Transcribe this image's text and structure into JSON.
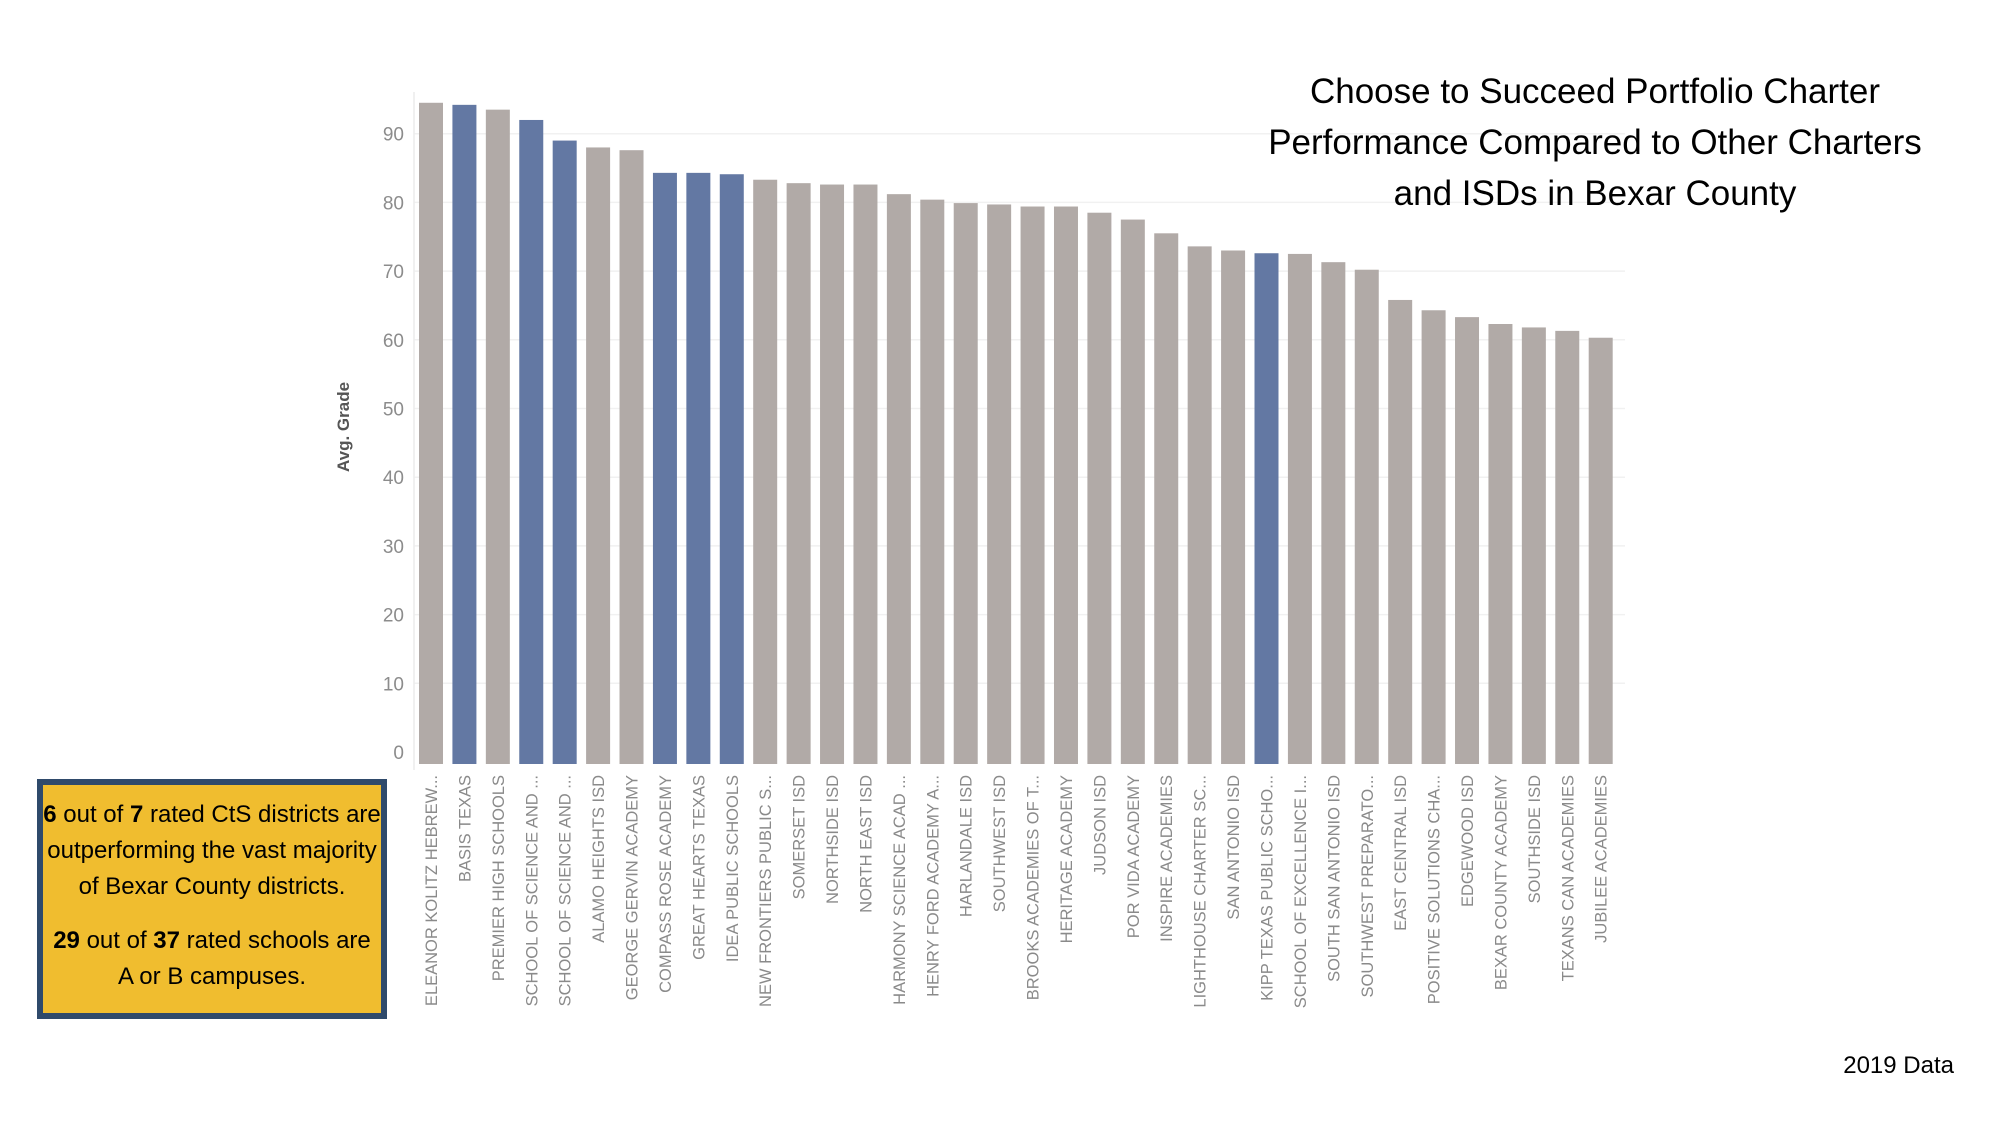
{
  "title_lines": [
    "Choose to Succeed Portfolio Charter",
    "Performance Compared to Other Charters",
    "and ISDs in Bexar County"
  ],
  "callout": {
    "p1": {
      "n1": "6",
      "t1": " out of ",
      "n2": "7",
      "t2": " rated CtS districts are outperforming the vast majority of Bexar County districts."
    },
    "p2": {
      "n1": "29",
      "t1": " out of ",
      "n2": "37",
      "t2": " rated schools are A or B campuses."
    }
  },
  "footnote": "2019 Data",
  "colors": {
    "cts_bar": "#6378a3",
    "other_bar": "#b1aaa7",
    "callout_bg": "#f0bd2f",
    "callout_border": "#2f4a6b"
  },
  "chart_data": {
    "type": "bar",
    "ylabel": "Avg. Grade",
    "xlabel": "",
    "ylim": [
      0,
      95
    ],
    "yticks": [
      0,
      10,
      20,
      30,
      40,
      50,
      60,
      70,
      80,
      90
    ],
    "grid": true,
    "categories": [
      "ELEANOR KOLITZ HEBREW...",
      "BASIS TEXAS",
      "PREMIER HIGH SCHOOLS",
      "SCHOOL OF SCIENCE AND ...",
      "SCHOOL OF SCIENCE AND ...",
      "ALAMO HEIGHTS ISD",
      "GEORGE GERVIN ACADEMY",
      "COMPASS ROSE ACADEMY",
      "GREAT HEARTS TEXAS",
      "IDEA PUBLIC SCHOOLS",
      "NEW FRONTIERS PUBLIC S...",
      "SOMERSET ISD",
      "NORTHSIDE ISD",
      "NORTH EAST ISD",
      "HARMONY SCIENCE ACAD ...",
      "HENRY FORD ACADEMY A...",
      "HARLANDALE ISD",
      "SOUTHWEST ISD",
      "BROOKS ACADEMIES OF T...",
      "HERITAGE ACADEMY",
      "JUDSON ISD",
      "POR VIDA ACADEMY",
      "INSPIRE ACADEMIES",
      "LIGHTHOUSE CHARTER SC...",
      "SAN ANTONIO ISD",
      "KIPP TEXAS PUBLIC SCHO...",
      "SCHOOL OF EXCELLENCE I...",
      "SOUTH SAN ANTONIO ISD",
      "SOUTHWEST PREPARATO...",
      "EAST CENTRAL ISD",
      "POSITIVE SOLUTIONS CHA...",
      "EDGEWOOD ISD",
      "BEXAR COUNTY ACADEMY",
      "SOUTHSIDE ISD",
      "TEXANS CAN ACADEMIES",
      "JUBILEE ACADEMIES"
    ],
    "values": [
      94.5,
      94.2,
      93.5,
      92.0,
      89.0,
      88.0,
      87.6,
      84.3,
      84.3,
      84.1,
      83.3,
      82.8,
      82.6,
      82.6,
      81.2,
      80.4,
      79.9,
      79.7,
      79.4,
      79.4,
      78.5,
      77.5,
      75.5,
      73.6,
      73.0,
      72.6,
      72.5,
      71.3,
      70.2,
      65.8,
      64.3,
      63.3,
      62.3,
      61.8,
      61.3,
      60.3
    ],
    "highlight": [
      false,
      true,
      false,
      true,
      true,
      false,
      false,
      true,
      true,
      true,
      false,
      false,
      false,
      false,
      false,
      false,
      false,
      false,
      false,
      false,
      false,
      false,
      false,
      false,
      false,
      true,
      false,
      false,
      false,
      false,
      false,
      false,
      false,
      false,
      false,
      false
    ]
  }
}
